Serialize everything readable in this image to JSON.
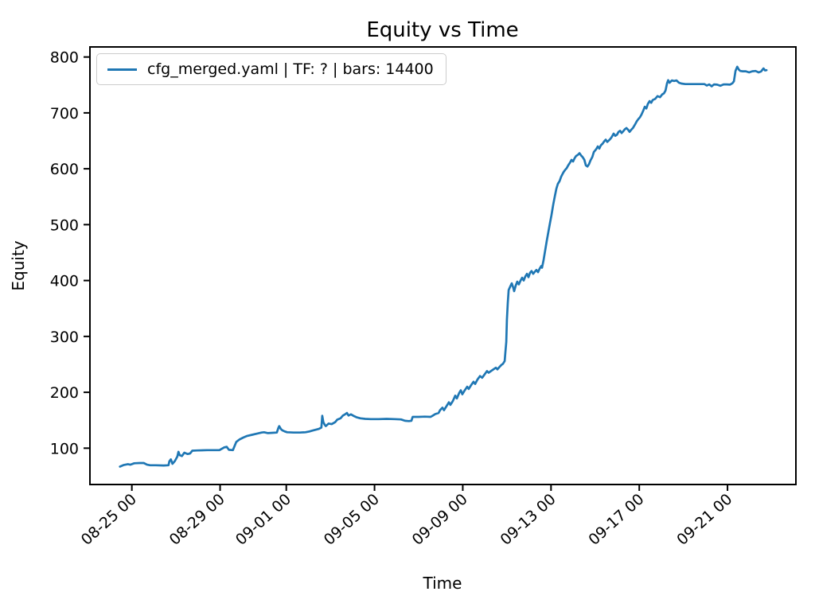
{
  "chart_data": {
    "type": "line",
    "title": "Equity vs Time",
    "xlabel": "Time",
    "ylabel": "Equity",
    "grid": false,
    "legend_position": "upper left",
    "x_unit": "days since 08-25 00:00",
    "xlim": [
      -1.9,
      30.1
    ],
    "ylim": [
      35,
      818
    ],
    "y_ticks": [
      100,
      200,
      300,
      400,
      500,
      600,
      700,
      800
    ],
    "x_ticks": [
      {
        "pos": 0,
        "label": "08-25 00"
      },
      {
        "pos": 4,
        "label": "08-29 00"
      },
      {
        "pos": 7,
        "label": "09-01 00"
      },
      {
        "pos": 11,
        "label": "09-05 00"
      },
      {
        "pos": 15,
        "label": "09-09 00"
      },
      {
        "pos": 19,
        "label": "09-13 00"
      },
      {
        "pos": 23,
        "label": "09-17 00"
      },
      {
        "pos": 27,
        "label": "09-21 00"
      }
    ],
    "series": [
      {
        "name": "cfg_merged.yaml | TF: ? | bars: 14400",
        "color": "#1f77b4",
        "bars": 14400,
        "points": [
          [
            -0.54,
            67
          ],
          [
            -0.36,
            70
          ],
          [
            -0.18,
            71.5
          ],
          [
            -0.07,
            70.5
          ],
          [
            0.11,
            73
          ],
          [
            0.36,
            73.5
          ],
          [
            0.54,
            73.5
          ],
          [
            0.69,
            70.5
          ],
          [
            0.83,
            69.5
          ],
          [
            1.08,
            69.5
          ],
          [
            1.44,
            69
          ],
          [
            1.66,
            69.5
          ],
          [
            1.7,
            76.5
          ],
          [
            1.77,
            80
          ],
          [
            1.84,
            72
          ],
          [
            1.95,
            77
          ],
          [
            2.06,
            85
          ],
          [
            2.11,
            93.5
          ],
          [
            2.17,
            87.5
          ],
          [
            2.27,
            86
          ],
          [
            2.38,
            92
          ],
          [
            2.53,
            89.5
          ],
          [
            2.64,
            90.5
          ],
          [
            2.74,
            95.5
          ],
          [
            2.96,
            96
          ],
          [
            3.43,
            96.5
          ],
          [
            3.97,
            96.5
          ],
          [
            4.19,
            101.5
          ],
          [
            4.3,
            102.5
          ],
          [
            4.4,
            97
          ],
          [
            4.58,
            96.5
          ],
          [
            4.73,
            111
          ],
          [
            4.87,
            115.5
          ],
          [
            5.05,
            119
          ],
          [
            5.23,
            122
          ],
          [
            5.45,
            124
          ],
          [
            5.67,
            126
          ],
          [
            5.88,
            128
          ],
          [
            5.99,
            128.5
          ],
          [
            6.17,
            127
          ],
          [
            6.39,
            127.5
          ],
          [
            6.57,
            128
          ],
          [
            6.64,
            136
          ],
          [
            6.68,
            139.5
          ],
          [
            6.75,
            134.5
          ],
          [
            6.82,
            132
          ],
          [
            6.93,
            130
          ],
          [
            7.04,
            128.5
          ],
          [
            7.33,
            128
          ],
          [
            7.62,
            128
          ],
          [
            7.87,
            128.5
          ],
          [
            8.05,
            130
          ],
          [
            8.19,
            131.5
          ],
          [
            8.38,
            133.5
          ],
          [
            8.48,
            134.5
          ],
          [
            8.59,
            137
          ],
          [
            8.63,
            158
          ],
          [
            8.68,
            146.5
          ],
          [
            8.74,
            142
          ],
          [
            8.79,
            139.5
          ],
          [
            8.92,
            144
          ],
          [
            9.06,
            143
          ],
          [
            9.21,
            146.5
          ],
          [
            9.31,
            151
          ],
          [
            9.46,
            153.5
          ],
          [
            9.57,
            158.5
          ],
          [
            9.68,
            161
          ],
          [
            9.75,
            163
          ],
          [
            9.82,
            158.5
          ],
          [
            9.93,
            160.5
          ],
          [
            10.04,
            158
          ],
          [
            10.18,
            155.5
          ],
          [
            10.36,
            153.5
          ],
          [
            10.58,
            152.5
          ],
          [
            10.83,
            152
          ],
          [
            11.19,
            152
          ],
          [
            11.55,
            152.5
          ],
          [
            11.91,
            152
          ],
          [
            12.2,
            151.5
          ],
          [
            12.38,
            149
          ],
          [
            12.56,
            148.5
          ],
          [
            12.67,
            149
          ],
          [
            12.73,
            156
          ],
          [
            13.0,
            156
          ],
          [
            13.28,
            156.5
          ],
          [
            13.54,
            156
          ],
          [
            13.65,
            158.5
          ],
          [
            13.75,
            161
          ],
          [
            13.9,
            163
          ],
          [
            13.97,
            168
          ],
          [
            14.08,
            172.5
          ],
          [
            14.15,
            168
          ],
          [
            14.26,
            175
          ],
          [
            14.37,
            182
          ],
          [
            14.44,
            177.5
          ],
          [
            14.55,
            184.5
          ],
          [
            14.66,
            194
          ],
          [
            14.73,
            189
          ],
          [
            14.84,
            199
          ],
          [
            14.91,
            203.5
          ],
          [
            14.98,
            196.5
          ],
          [
            15.09,
            203.5
          ],
          [
            15.2,
            210
          ],
          [
            15.27,
            206
          ],
          [
            15.38,
            213
          ],
          [
            15.49,
            219
          ],
          [
            15.56,
            215
          ],
          [
            15.67,
            223
          ],
          [
            15.78,
            229
          ],
          [
            15.88,
            226
          ],
          [
            15.99,
            232
          ],
          [
            16.1,
            238
          ],
          [
            16.17,
            235
          ],
          [
            16.28,
            238
          ],
          [
            16.39,
            241
          ],
          [
            16.5,
            244
          ],
          [
            16.57,
            241
          ],
          [
            16.68,
            246
          ],
          [
            16.75,
            249
          ],
          [
            16.82,
            251
          ],
          [
            16.9,
            256
          ],
          [
            16.93,
            270
          ],
          [
            16.97,
            290
          ],
          [
            17.0,
            330
          ],
          [
            17.04,
            360
          ],
          [
            17.08,
            383
          ],
          [
            17.15,
            389
          ],
          [
            17.22,
            395
          ],
          [
            17.29,
            387
          ],
          [
            17.33,
            381
          ],
          [
            17.4,
            391
          ],
          [
            17.47,
            398
          ],
          [
            17.54,
            393
          ],
          [
            17.62,
            400
          ],
          [
            17.69,
            405
          ],
          [
            17.76,
            400
          ],
          [
            17.83,
            407
          ],
          [
            17.91,
            412
          ],
          [
            17.98,
            406
          ],
          [
            18.05,
            414
          ],
          [
            18.12,
            417
          ],
          [
            18.19,
            412
          ],
          [
            18.27,
            416
          ],
          [
            18.34,
            419
          ],
          [
            18.41,
            415
          ],
          [
            18.48,
            421
          ],
          [
            18.56,
            426
          ],
          [
            18.59,
            423
          ],
          [
            18.66,
            436
          ],
          [
            18.74,
            455
          ],
          [
            18.81,
            472
          ],
          [
            18.88,
            487
          ],
          [
            18.95,
            502
          ],
          [
            19.02,
            517
          ],
          [
            19.1,
            536
          ],
          [
            19.17,
            550
          ],
          [
            19.24,
            564
          ],
          [
            19.31,
            573
          ],
          [
            19.39,
            578
          ],
          [
            19.46,
            586
          ],
          [
            19.57,
            594
          ],
          [
            19.64,
            598
          ],
          [
            19.71,
            601
          ],
          [
            19.78,
            606
          ],
          [
            19.86,
            611
          ],
          [
            19.93,
            616
          ],
          [
            20.0,
            613
          ],
          [
            20.07,
            619
          ],
          [
            20.14,
            623
          ],
          [
            20.22,
            625
          ],
          [
            20.29,
            628
          ],
          [
            20.36,
            624
          ],
          [
            20.43,
            621
          ],
          [
            20.51,
            616
          ],
          [
            20.58,
            606
          ],
          [
            20.65,
            604
          ],
          [
            20.72,
            608
          ],
          [
            20.79,
            615
          ],
          [
            20.87,
            621
          ],
          [
            20.94,
            630
          ],
          [
            21.05,
            635
          ],
          [
            21.12,
            640
          ],
          [
            21.19,
            636
          ],
          [
            21.26,
            642
          ],
          [
            21.34,
            645
          ],
          [
            21.41,
            649
          ],
          [
            21.48,
            652
          ],
          [
            21.55,
            648
          ],
          [
            21.63,
            651
          ],
          [
            21.7,
            654
          ],
          [
            21.77,
            658
          ],
          [
            21.84,
            663
          ],
          [
            21.91,
            659
          ],
          [
            21.99,
            661
          ],
          [
            22.06,
            666
          ],
          [
            22.13,
            668
          ],
          [
            22.2,
            664
          ],
          [
            22.27,
            667
          ],
          [
            22.35,
            671
          ],
          [
            22.42,
            673
          ],
          [
            22.49,
            670
          ],
          [
            22.56,
            666
          ],
          [
            22.64,
            670
          ],
          [
            22.71,
            673
          ],
          [
            22.82,
            680
          ],
          [
            22.89,
            685
          ],
          [
            22.96,
            689
          ],
          [
            23.03,
            692
          ],
          [
            23.1,
            697
          ],
          [
            23.18,
            704
          ],
          [
            23.25,
            711
          ],
          [
            23.32,
            708
          ],
          [
            23.39,
            716
          ],
          [
            23.47,
            721
          ],
          [
            23.54,
            718
          ],
          [
            23.61,
            723
          ],
          [
            23.72,
            725
          ],
          [
            23.83,
            730
          ],
          [
            23.94,
            728
          ],
          [
            24.04,
            733
          ],
          [
            24.12,
            735
          ],
          [
            24.19,
            740
          ],
          [
            24.26,
            753
          ],
          [
            24.31,
            758.5
          ],
          [
            24.37,
            754
          ],
          [
            24.48,
            758
          ],
          [
            24.58,
            757
          ],
          [
            24.69,
            758
          ],
          [
            24.8,
            754
          ],
          [
            24.91,
            752.5
          ],
          [
            25.09,
            751.5
          ],
          [
            25.31,
            751.5
          ],
          [
            25.52,
            751.5
          ],
          [
            25.74,
            751.5
          ],
          [
            25.96,
            751.5
          ],
          [
            26.06,
            749
          ],
          [
            26.17,
            751
          ],
          [
            26.28,
            747.5
          ],
          [
            26.39,
            751
          ],
          [
            26.53,
            750.5
          ],
          [
            26.68,
            748.5
          ],
          [
            26.82,
            751
          ],
          [
            26.97,
            751
          ],
          [
            27.11,
            750.5
          ],
          [
            27.22,
            753
          ],
          [
            27.29,
            756.5
          ],
          [
            27.36,
            775
          ],
          [
            27.44,
            782.5
          ],
          [
            27.51,
            777.5
          ],
          [
            27.58,
            775
          ],
          [
            27.69,
            774.5
          ],
          [
            27.83,
            774.5
          ],
          [
            27.98,
            772.5
          ],
          [
            28.12,
            774.5
          ],
          [
            28.27,
            775
          ],
          [
            28.41,
            772.5
          ],
          [
            28.52,
            774
          ],
          [
            28.63,
            779.5
          ],
          [
            28.7,
            776
          ],
          [
            28.77,
            776.5
          ]
        ]
      }
    ],
    "style": {
      "line_color": "#1f77b4",
      "axis_color": "#000000",
      "background": "#ffffff",
      "legend_border": "#cccccc"
    }
  },
  "legend": {
    "entries": [
      {
        "label": "cfg_merged.yaml | TF: ? | bars: 14400",
        "color": "#1f77b4"
      }
    ]
  }
}
